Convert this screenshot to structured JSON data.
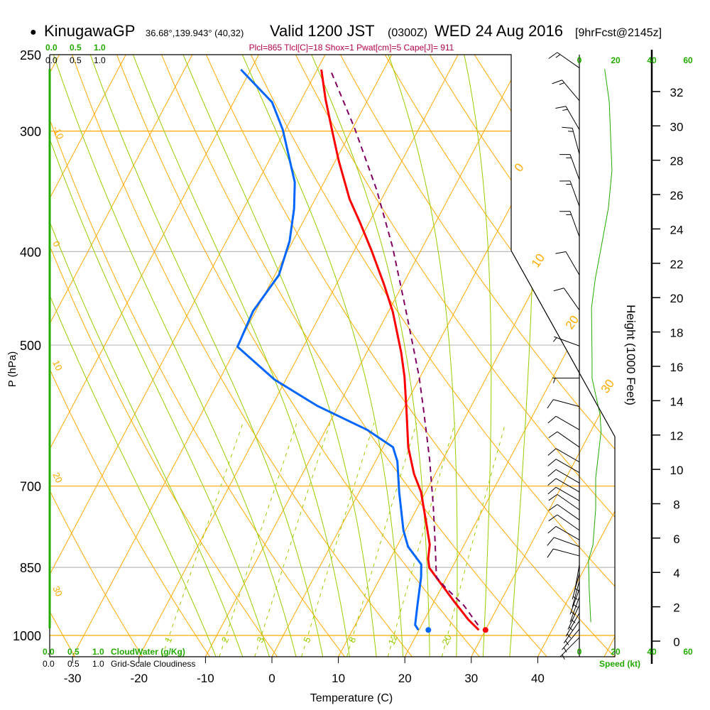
{
  "header": {
    "bullet": "●",
    "station": "KinugawaGP",
    "coords": "36.68°,139.943° (40,32)",
    "valid": "Valid 1200 JST",
    "utc": "(0300Z)",
    "date": "WED 24 Aug 2016",
    "forecast": "[9hrFcst@2145z]",
    "indices": "Plcl=865 Tlcl[C]=18 Shox=1 Pwat[cm]=5 Cape[J]= 911"
  },
  "cloud_scale": {
    "top_green": [
      "0.0",
      "0.5",
      "1.0"
    ],
    "top_black": [
      "0.0",
      "0.5",
      "1.0"
    ],
    "bottom_green": [
      "0.0",
      "0.5",
      "1.0"
    ],
    "bottom_green_label": "CloudWater (g/Kg)",
    "bottom_black": [
      "0.0",
      "0.5",
      "1.0"
    ],
    "bottom_black_label": "Grid-Scale Cloudiness"
  },
  "speed_scale": {
    "ticks": [
      "0",
      "20",
      "40",
      "60"
    ],
    "label": "Speed (kt)"
  },
  "colors": {
    "temperature": "#ff0000",
    "dewpoint": "#0066ff",
    "parcel": "#800060",
    "isotherm": "#ffaa00",
    "moist": "#99cc00",
    "speed": "#22aa00",
    "indices": "#b0004a"
  },
  "chart_data": {
    "type": "line",
    "title": "KinugawaGP Valid 1200 JST (0300Z) WED 24 Aug 2016",
    "xlabel": "Temperature (C)",
    "ylabel": "P (hPa)",
    "y2label": "Height (1000 Feet)",
    "x_ticks": [
      "-30",
      "-20",
      "-10",
      "0",
      "10",
      "20",
      "30",
      "40"
    ],
    "y_ticks": [
      "250",
      "300",
      "400",
      "500",
      "700",
      "850",
      "1000"
    ],
    "height_ticks": [
      "0",
      "2",
      "4",
      "6",
      "8",
      "10",
      "12",
      "14",
      "16",
      "18",
      "20",
      "22",
      "24",
      "26",
      "28",
      "30",
      "32"
    ],
    "ylim": [
      1052,
      250
    ],
    "xlim": [
      -33,
      36
    ],
    "isotherm_labels": [
      "0",
      "10",
      "20",
      "30"
    ],
    "adiabat_labels": [
      "-10",
      "0",
      "10",
      "20",
      "30"
    ],
    "mixing_ratio_labels": [
      "1",
      "2",
      "3",
      "5",
      "8",
      "12",
      "20"
    ],
    "series": [
      {
        "name": "Temperature",
        "p": [
          259,
          278,
          299,
          322,
          353,
          373,
          399,
          432,
          462,
          509,
          539,
          586,
          638,
          680,
          710,
          760,
          805,
          833,
          851,
          876,
          922,
          963,
          987
        ],
        "T": [
          -39.4,
          -36.4,
          -33.0,
          -29.5,
          -24.8,
          -21.4,
          -17.4,
          -12.9,
          -9.3,
          -4.8,
          -2.4,
          0.7,
          3.8,
          6.8,
          9.3,
          12.3,
          14.8,
          15.7,
          16.6,
          18.9,
          23.0,
          26.6,
          29.0
        ]
      },
      {
        "name": "Dewpoint",
        "p": [
          259,
          280,
          299,
          339,
          361,
          390,
          423,
          461,
          502,
          543,
          578,
          612,
          638,
          660,
          710,
          778,
          809,
          844,
          870,
          931,
          975,
          987
        ],
        "T": [
          -51.5,
          -44.2,
          -40.4,
          -34.4,
          -32.4,
          -30.5,
          -29.4,
          -30.4,
          -29.9,
          -21.7,
          -13.2,
          -3.8,
          1.5,
          3.3,
          6.0,
          9.7,
          11.7,
          15.1,
          16.1,
          17.8,
          19.0,
          19.9
        ]
      },
      {
        "name": "Parcel",
        "p": [
          261,
          298,
          345,
          395,
          455,
          506,
          539,
          586,
          657,
          735,
          800,
          870,
          891,
          931,
          983
        ],
        "T": [
          -37.6,
          -29.7,
          -21.5,
          -14.6,
          -8.0,
          -3.1,
          -0.2,
          3.3,
          8.0,
          12.3,
          15.4,
          18.4,
          20.5,
          24.8,
          29.1
        ]
      }
    ],
    "surface_points": {
      "temperature": {
        "p": 987,
        "T": 30.0
      },
      "dewpoint": {
        "p": 987,
        "T": 21.4
      }
    },
    "wind_speed_profile": {
      "height_kft": [
        33.3,
        31.4,
        27.4,
        25.2,
        22.9,
        21.1,
        19.4,
        16.4,
        15.3,
        13.2,
        12.2,
        9.5,
        7.7,
        5.6,
        4.7,
        2.9,
        1.1
      ],
      "speed_kt": [
        14,
        16.5,
        18,
        16,
        12,
        8.8,
        6.7,
        7,
        7,
        11.4,
        12,
        9,
        9,
        7.5,
        5,
        5.5,
        6.3
      ]
    },
    "wind_barbs": [
      {
        "p": 258,
        "dir": 305,
        "kt": 15
      },
      {
        "p": 279,
        "dir": 320,
        "kt": 15
      },
      {
        "p": 299,
        "dir": 330,
        "kt": 15
      },
      {
        "p": 317,
        "dir": 345,
        "kt": 15
      },
      {
        "p": 337,
        "dir": 340,
        "kt": 15
      },
      {
        "p": 359,
        "dir": 340,
        "kt": 15
      },
      {
        "p": 386,
        "dir": 340,
        "kt": 15
      },
      {
        "p": 423,
        "dir": 330,
        "kt": 10
      },
      {
        "p": 460,
        "dir": 325,
        "kt": 10
      },
      {
        "p": 501,
        "dir": 290,
        "kt": 5
      },
      {
        "p": 541,
        "dir": 270,
        "kt": 5
      },
      {
        "p": 579,
        "dir": 285,
        "kt": 10
      },
      {
        "p": 612,
        "dir": 300,
        "kt": 10
      },
      {
        "p": 638,
        "dir": 305,
        "kt": 10
      },
      {
        "p": 661,
        "dir": 300,
        "kt": 10
      },
      {
        "p": 678,
        "dir": 300,
        "kt": 10
      },
      {
        "p": 695,
        "dir": 300,
        "kt": 10
      },
      {
        "p": 710,
        "dir": 300,
        "kt": 10
      },
      {
        "p": 725,
        "dir": 300,
        "kt": 10
      },
      {
        "p": 741,
        "dir": 305,
        "kt": 10
      },
      {
        "p": 759,
        "dir": 305,
        "kt": 10
      },
      {
        "p": 778,
        "dir": 305,
        "kt": 10
      },
      {
        "p": 796,
        "dir": 300,
        "kt": 10
      },
      {
        "p": 809,
        "dir": 290,
        "kt": 10
      },
      {
        "p": 827,
        "dir": 285,
        "kt": 10
      },
      {
        "p": 845,
        "dir": 190,
        "kt": 5
      },
      {
        "p": 862,
        "dir": 195,
        "kt": 5
      },
      {
        "p": 878,
        "dir": 195,
        "kt": 5
      },
      {
        "p": 895,
        "dir": 200,
        "kt": 5
      },
      {
        "p": 912,
        "dir": 200,
        "kt": 5
      },
      {
        "p": 930,
        "dir": 205,
        "kt": 5
      },
      {
        "p": 948,
        "dir": 210,
        "kt": 5
      },
      {
        "p": 966,
        "dir": 215,
        "kt": 5
      },
      {
        "p": 985,
        "dir": 220,
        "kt": 5
      },
      {
        "p": 1005,
        "dir": 225,
        "kt": 5
      }
    ]
  }
}
